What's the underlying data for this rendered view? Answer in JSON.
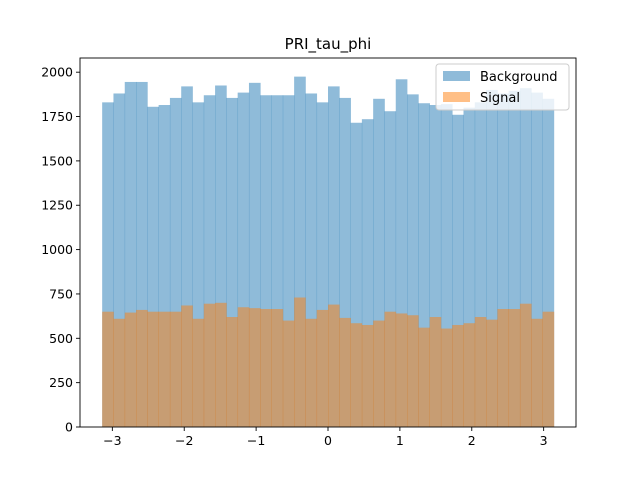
{
  "chart_data": {
    "type": "bar",
    "title": "PRI_tau_phi",
    "xlabel": "",
    "ylabel": "",
    "xlim": [
      -3.45,
      3.45
    ],
    "ylim": [
      0,
      2080
    ],
    "x_ticks": [
      -3,
      -2,
      -1,
      0,
      1,
      2,
      3
    ],
    "x_tick_labels": [
      "−3",
      "−2",
      "−1",
      "0",
      "1",
      "2",
      "3"
    ],
    "y_ticks": [
      0,
      250,
      500,
      750,
      1000,
      1250,
      1500,
      1750,
      2000
    ],
    "y_tick_labels": [
      "0",
      "250",
      "500",
      "750",
      "1000",
      "1250",
      "1500",
      "1750",
      "2000"
    ],
    "bins": {
      "start": -3.1416,
      "end": 3.1416,
      "count": 40
    },
    "legend": {
      "position": "top-right"
    },
    "series": [
      {
        "name": "Background",
        "color": "#1f77b4",
        "alpha": 0.5,
        "values": [
          1830,
          1880,
          1945,
          1945,
          1805,
          1815,
          1855,
          1920,
          1830,
          1870,
          1925,
          1855,
          1885,
          1940,
          1870,
          1870,
          1870,
          1975,
          1880,
          1830,
          1920,
          1855,
          1715,
          1735,
          1850,
          1780,
          1960,
          1875,
          1825,
          1815,
          1820,
          1760,
          1800,
          1830,
          1900,
          1880,
          1895,
          1910,
          1885,
          1850
        ]
      },
      {
        "name": "Signal",
        "color": "#ff7f0e",
        "alpha": 0.5,
        "values": [
          650,
          610,
          645,
          660,
          650,
          650,
          650,
          685,
          610,
          695,
          700,
          620,
          675,
          670,
          665,
          665,
          600,
          730,
          610,
          660,
          690,
          615,
          585,
          575,
          600,
          650,
          640,
          630,
          560,
          620,
          555,
          575,
          585,
          620,
          605,
          665,
          665,
          695,
          610,
          650
        ]
      }
    ]
  }
}
